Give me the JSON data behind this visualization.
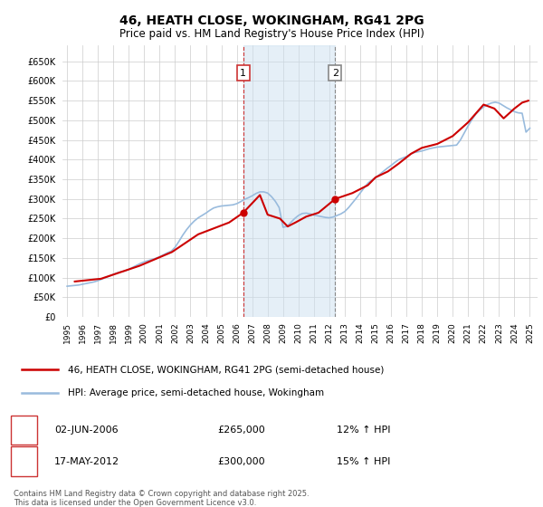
{
  "title": "46, HEATH CLOSE, WOKINGHAM, RG41 2PG",
  "subtitle": "Price paid vs. HM Land Registry's House Price Index (HPI)",
  "title_fontsize": 10,
  "subtitle_fontsize": 8.5,
  "ytick_values": [
    0,
    50000,
    100000,
    150000,
    200000,
    250000,
    300000,
    350000,
    400000,
    450000,
    500000,
    550000,
    600000,
    650000
  ],
  "ylim": [
    0,
    690000
  ],
  "xlim_start": 1994.7,
  "xlim_end": 2025.5,
  "grid_color": "#cccccc",
  "background_color": "#ffffff",
  "plot_bg_color": "#ffffff",
  "sale_color": "#cc0000",
  "hpi_color": "#99bbdd",
  "marker1_x": 2006.42,
  "marker1_y": 265000,
  "marker2_x": 2012.38,
  "marker2_y": 300000,
  "shade_color": "#cce0f0",
  "shade_alpha": 0.5,
  "shade_x1": 2006.42,
  "shade_x2": 2012.38,
  "legend_label_sale": "46, HEATH CLOSE, WOKINGHAM, RG41 2PG (semi-detached house)",
  "legend_label_hpi": "HPI: Average price, semi-detached house, Wokingham",
  "table_row1": [
    "1",
    "02-JUN-2006",
    "£265,000",
    "12% ↑ HPI"
  ],
  "table_row2": [
    "2",
    "17-MAY-2012",
    "£300,000",
    "15% ↑ HPI"
  ],
  "copyright_text": "Contains HM Land Registry data © Crown copyright and database right 2025.\nThis data is licensed under the Open Government Licence v3.0.",
  "hpi_data": {
    "years": [
      1995.0,
      1995.25,
      1995.5,
      1995.75,
      1996.0,
      1996.25,
      1996.5,
      1996.75,
      1997.0,
      1997.25,
      1997.5,
      1997.75,
      1998.0,
      1998.25,
      1998.5,
      1998.75,
      1999.0,
      1999.25,
      1999.5,
      1999.75,
      2000.0,
      2000.25,
      2000.5,
      2000.75,
      2001.0,
      2001.25,
      2001.5,
      2001.75,
      2002.0,
      2002.25,
      2002.5,
      2002.75,
      2003.0,
      2003.25,
      2003.5,
      2003.75,
      2004.0,
      2004.25,
      2004.5,
      2004.75,
      2005.0,
      2005.25,
      2005.5,
      2005.75,
      2006.0,
      2006.25,
      2006.5,
      2006.75,
      2007.0,
      2007.25,
      2007.5,
      2007.75,
      2008.0,
      2008.25,
      2008.5,
      2008.75,
      2009.0,
      2009.25,
      2009.5,
      2009.75,
      2010.0,
      2010.25,
      2010.5,
      2010.75,
      2011.0,
      2011.25,
      2011.5,
      2011.75,
      2012.0,
      2012.25,
      2012.5,
      2012.75,
      2013.0,
      2013.25,
      2013.5,
      2013.75,
      2014.0,
      2014.25,
      2014.5,
      2014.75,
      2015.0,
      2015.25,
      2015.5,
      2015.75,
      2016.0,
      2016.25,
      2016.5,
      2016.75,
      2017.0,
      2017.25,
      2017.5,
      2017.75,
      2018.0,
      2018.25,
      2018.5,
      2018.75,
      2019.0,
      2019.25,
      2019.5,
      2019.75,
      2020.0,
      2020.25,
      2020.5,
      2020.75,
      2021.0,
      2021.25,
      2021.5,
      2021.75,
      2022.0,
      2022.25,
      2022.5,
      2022.75,
      2023.0,
      2023.25,
      2023.5,
      2023.75,
      2024.0,
      2024.25,
      2024.5,
      2024.75,
      2025.0
    ],
    "values": [
      78000,
      79000,
      80000,
      81000,
      83000,
      85000,
      87000,
      89000,
      92000,
      96000,
      100000,
      104000,
      108000,
      112000,
      115000,
      117000,
      121000,
      126000,
      131000,
      136000,
      140000,
      143000,
      146000,
      149000,
      153000,
      158000,
      163000,
      167000,
      177000,
      192000,
      208000,
      222000,
      234000,
      244000,
      252000,
      258000,
      264000,
      271000,
      277000,
      280000,
      282000,
      283000,
      284000,
      285000,
      288000,
      293000,
      299000,
      303000,
      308000,
      314000,
      318000,
      318000,
      315000,
      306000,
      294000,
      278000,
      228000,
      230000,
      240000,
      250000,
      258000,
      263000,
      264000,
      262000,
      259000,
      257000,
      255000,
      253000,
      252000,
      254000,
      258000,
      262000,
      268000,
      278000,
      290000,
      302000,
      315000,
      328000,
      340000,
      348000,
      354000,
      362000,
      370000,
      378000,
      385000,
      393000,
      400000,
      404000,
      408000,
      414000,
      418000,
      420000,
      422000,
      425000,
      428000,
      430000,
      432000,
      433000,
      434000,
      435000,
      436000,
      437000,
      450000,
      468000,
      486000,
      502000,
      516000,
      526000,
      534000,
      540000,
      544000,
      546000,
      544000,
      538000,
      532000,
      527000,
      522000,
      519000,
      518000,
      470000,
      480000
    ]
  },
  "sale_data": {
    "years": [
      1995.5,
      1997.2,
      1999.7,
      2001.8,
      2003.5,
      2005.5,
      2006.42,
      2007.5,
      2008.0,
      2008.8,
      2009.3,
      2009.8,
      2010.5,
      2011.3,
      2012.38,
      2013.5,
      2014.5,
      2015.0,
      2015.8,
      2016.5,
      2017.3,
      2018.0,
      2019.0,
      2020.0,
      2021.0,
      2022.0,
      2022.7,
      2023.3,
      2024.0,
      2024.5,
      2024.9
    ],
    "values": [
      90000,
      97000,
      130000,
      165000,
      210000,
      240000,
      265000,
      310000,
      260000,
      250000,
      230000,
      240000,
      255000,
      265000,
      300000,
      315000,
      335000,
      355000,
      370000,
      390000,
      415000,
      430000,
      440000,
      460000,
      495000,
      540000,
      530000,
      505000,
      530000,
      545000,
      550000
    ]
  }
}
